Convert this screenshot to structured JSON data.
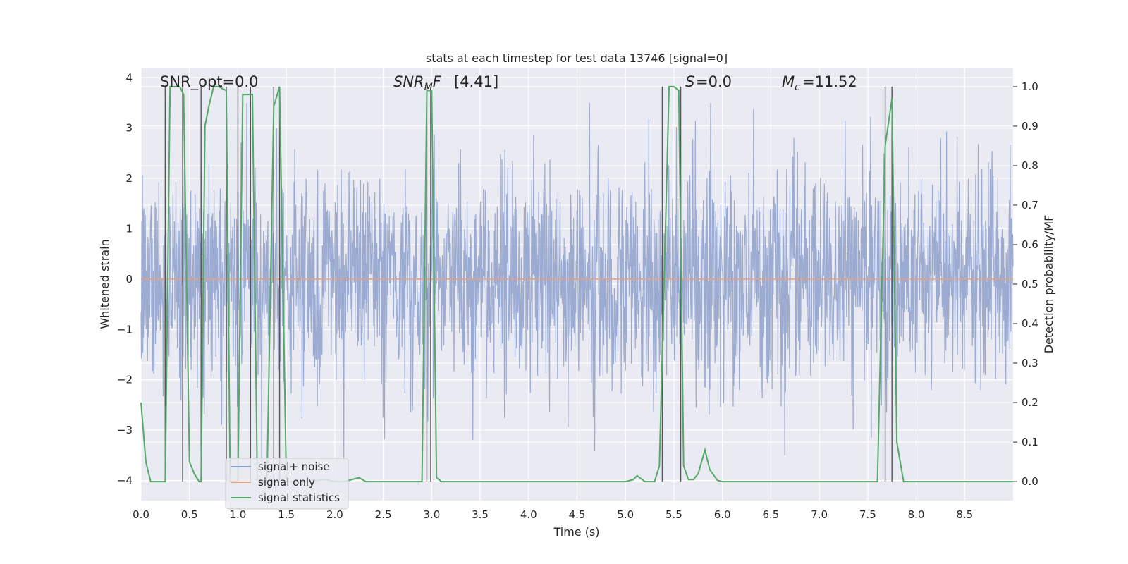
{
  "chart_data": {
    "type": "line",
    "title": "stats at each timestep for test data 13746 [signal=0]",
    "xlabel": "Time (s)",
    "ylabel_left": "Whitened strain",
    "ylabel_right": "Detection probability/MF",
    "xlim": [
      0.0,
      9.0
    ],
    "ylim_left": [
      -4.4,
      4.2
    ],
    "ylim_right": [
      -0.048,
      1.048
    ],
    "xticks": [
      "0.0",
      "0.5",
      "1.0",
      "1.5",
      "2.0",
      "2.5",
      "3.0",
      "3.5",
      "4.0",
      "4.5",
      "5.0",
      "5.5",
      "6.0",
      "6.5",
      "7.0",
      "7.5",
      "8.0",
      "8.5"
    ],
    "yticks_left": [
      "4",
      "3",
      "2",
      "1",
      "0",
      "−1",
      "−2",
      "−3",
      "−4"
    ],
    "yticks_right": [
      "1.0",
      "0.9",
      "0.8",
      "0.7",
      "0.6",
      "0.5",
      "0.4",
      "0.3",
      "0.2",
      "0.1",
      "0.0"
    ],
    "grid": true,
    "legend_position": "lower-left",
    "annotations": {
      "snr_opt": "SNR_opt=0.0",
      "snr_mf": "[4.41]",
      "s": "=0.0",
      "mc": "=11.52"
    },
    "series": [
      {
        "name": "signal+ noise",
        "color": "#8da0cb",
        "description_range": [
          -3.8,
          3.5
        ],
        "noise_seed": 13746
      },
      {
        "name": "signal only",
        "color": "#e8a17e",
        "constant": 0.0
      },
      {
        "name": "signal statistics",
        "color": "#55a868",
        "x": [
          0.0,
          0.05,
          0.1,
          0.2,
          0.25,
          0.3,
          0.33,
          0.4,
          0.44,
          0.5,
          0.55,
          0.6,
          0.62,
          0.66,
          0.7,
          0.75,
          0.8,
          0.88,
          0.92,
          1.0,
          1.05,
          1.1,
          1.15,
          1.2,
          1.3,
          1.37,
          1.43,
          1.5,
          1.55,
          1.6,
          1.7,
          1.9,
          2.0,
          2.1,
          2.25,
          2.32,
          2.9,
          2.95,
          3.0,
          3.05,
          3.1,
          3.5,
          4.0,
          4.5,
          5.0,
          5.08,
          5.12,
          5.2,
          5.3,
          5.35,
          5.45,
          5.5,
          5.55,
          5.6,
          5.65,
          5.7,
          5.75,
          5.82,
          5.87,
          5.9,
          5.95,
          6.0,
          6.2,
          7.0,
          7.6,
          7.68,
          7.75,
          7.8,
          7.87,
          7.9,
          8.0,
          8.5,
          9.0
        ],
        "y": [
          0.2,
          0.05,
          0.0,
          0.0,
          0.0,
          1.0,
          1.0,
          1.0,
          0.98,
          0.05,
          0.02,
          0.0,
          0.0,
          0.9,
          0.95,
          1.0,
          1.0,
          0.99,
          0.0,
          0.0,
          0.98,
          0.98,
          0.98,
          0.0,
          0.0,
          0.95,
          1.0,
          0.0,
          0.0,
          0.0,
          0.0,
          0.005,
          0.0,
          0.0,
          0.01,
          0.0,
          0.0,
          0.99,
          0.99,
          0.01,
          0.0,
          0.0,
          0.0,
          0.0,
          0.0,
          0.005,
          0.015,
          0.0,
          0.0,
          0.04,
          1.0,
          1.0,
          0.99,
          0.04,
          0.005,
          0.005,
          0.02,
          0.08,
          0.03,
          0.02,
          0.003,
          0.0,
          0.0,
          0.0,
          0.0,
          0.85,
          0.97,
          0.1,
          0.0,
          0.0,
          0.0,
          0.0,
          0.0
        ]
      }
    ],
    "vlines_x": [
      0.25,
      0.43,
      0.62,
      0.88,
      1.0,
      1.13,
      1.37,
      1.43,
      2.95,
      2.99,
      5.38,
      5.57,
      7.68,
      7.75
    ]
  },
  "legend": {
    "noise_label": "signal+ noise",
    "signal_label": "signal only",
    "stats_label": "signal statistics"
  },
  "colors": {
    "axes_bg": "#eaeaf2",
    "grid": "#ffffff",
    "noise": "#8da0cb",
    "signal_only": "#e8a17e",
    "stats": "#55a868",
    "vline": "#555555"
  }
}
